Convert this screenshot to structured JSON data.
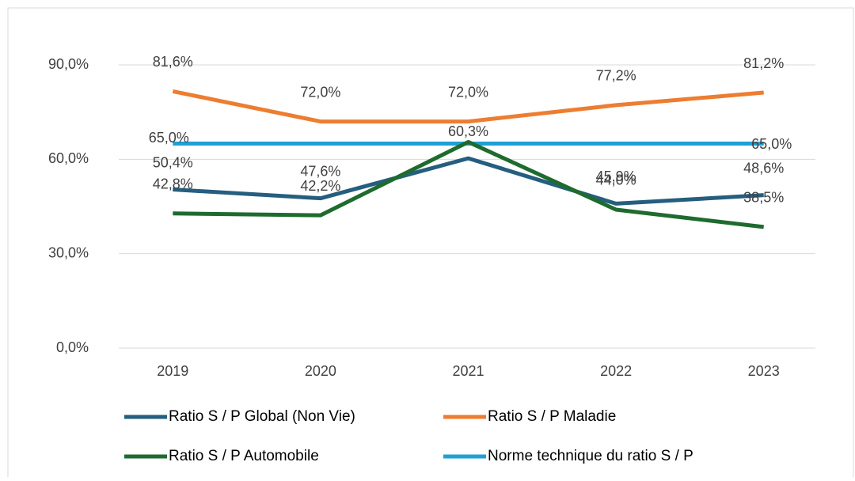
{
  "chart_data": {
    "type": "line",
    "categories": [
      "2019",
      "2020",
      "2021",
      "2022",
      "2023"
    ],
    "series": [
      {
        "name": "Ratio S / P Global (Non Vie)",
        "color": "#255e7e",
        "values": [
          50.4,
          47.6,
          60.3,
          45.9,
          48.6
        ],
        "value_labels": [
          "50,4%",
          "47,6%",
          "60,3%",
          "45,9%",
          "48,6%"
        ]
      },
      {
        "name": "Ratio S / P Maladie",
        "color": "#ed7d31",
        "values": [
          81.6,
          72.0,
          72.0,
          77.2,
          81.2
        ],
        "value_labels": [
          "81,6%",
          "72,0%",
          "72,0%",
          "77,2%",
          "81,2%"
        ]
      },
      {
        "name": "Ratio S / P Automobile",
        "color": "#1e6b2e",
        "values": [
          42.8,
          42.2,
          65.5,
          44.0,
          38.5
        ],
        "value_labels": [
          "42,8%",
          "42,2%",
          null,
          "44,0%",
          "38,5%"
        ]
      },
      {
        "name": "Norme technique du ratio S / P",
        "color": "#1f9fd6",
        "values": [
          65.0,
          65.0,
          65.0,
          65.0,
          65.0
        ],
        "value_labels": [
          "65,0%",
          null,
          null,
          null,
          "65,0%"
        ]
      }
    ],
    "ylim": [
      0,
      90
    ],
    "yticks": [
      {
        "value": 0,
        "label": "0,0%"
      },
      {
        "value": 30,
        "label": "30,0%"
      },
      {
        "value": 60,
        "label": "60,0%"
      },
      {
        "value": 90,
        "label": "90,0%"
      }
    ],
    "grid": true
  }
}
